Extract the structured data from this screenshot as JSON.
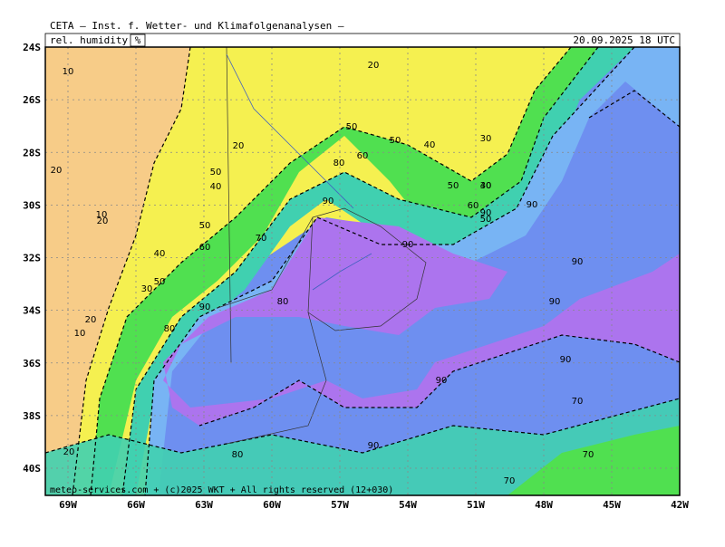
{
  "header": {
    "title": "CETA – Inst. f. Wetter- und Klimafolgenanalysen –",
    "variable": "rel. humidity",
    "unit": "%",
    "valid_time": "20.09.2025 18 UTC"
  },
  "lat_labels": [
    "24S",
    "26S",
    "28S",
    "30S",
    "32S",
    "34S",
    "36S",
    "38S",
    "40S"
  ],
  "lon_labels": [
    "69W",
    "66W",
    "63W",
    "60W",
    "57W",
    "54W",
    "51W",
    "48W",
    "45W",
    "42W"
  ],
  "contour_labels": [
    "10",
    "20",
    "20",
    "20",
    "10",
    "20",
    "50",
    "40",
    "50",
    "60",
    "50",
    "40",
    "30",
    "20",
    "10",
    "30",
    "50",
    "60",
    "70",
    "80",
    "90",
    "50",
    "80",
    "90",
    "50",
    "40",
    "30",
    "50",
    "40",
    "60",
    "90",
    "90",
    "90",
    "90",
    "90",
    "90",
    "90",
    "80",
    "70",
    "70",
    "90",
    "70",
    "80",
    "20"
  ],
  "footer": "meteo-services.com + (c)2025 WKT + All rights reserved (12+030)"
}
